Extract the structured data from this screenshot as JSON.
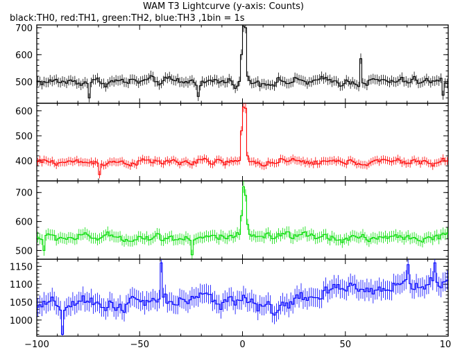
{
  "title": "WAM T3 Lightcurve (y-axis: Counts)",
  "subtitle": "black:TH0, red:TH1, green:TH2, blue:TH3 ,1bin = 1s",
  "chart_data": [
    {
      "type": "line",
      "series_name": "TH0",
      "color": "#000000",
      "xlim": [
        -100,
        100
      ],
      "ylim": [
        420,
        710
      ],
      "yticks": [
        500,
        600,
        700
      ],
      "ytick_labels": [
        "500",
        "600",
        "700"
      ],
      "baseline": 500,
      "noise": 22,
      "features": [
        {
          "x": -0.5,
          "value": 600
        },
        {
          "x": 0.5,
          "value": 705
        },
        {
          "x": 1.5,
          "value": 700
        },
        {
          "x": 2.5,
          "value": 520
        },
        {
          "x": -22,
          "value": 445
        },
        {
          "x": -75,
          "value": 440
        },
        {
          "x": 57,
          "value": 585
        },
        {
          "x": 97,
          "value": 450
        }
      ]
    },
    {
      "type": "line",
      "series_name": "TH1",
      "color": "#ff0000",
      "xlim": [
        -100,
        100
      ],
      "ylim": [
        320,
        630
      ],
      "yticks": [
        400,
        500,
        600
      ],
      "ytick_labels": [
        "400",
        "500",
        "600"
      ],
      "baseline": 395,
      "noise": 18,
      "features": [
        {
          "x": -0.5,
          "value": 520
        },
        {
          "x": 0.5,
          "value": 615
        },
        {
          "x": 1.5,
          "value": 610
        },
        {
          "x": 2.5,
          "value": 420
        },
        {
          "x": -70,
          "value": 345
        },
        {
          "x": 97,
          "value": 410
        }
      ]
    },
    {
      "type": "line",
      "series_name": "TH2",
      "color": "#00dd00",
      "xlim": [
        -100,
        100
      ],
      "ylim": [
        470,
        740
      ],
      "yticks": [
        500,
        600,
        700
      ],
      "ytick_labels": [
        "500",
        "600",
        "700"
      ],
      "baseline": 545,
      "noise": 20,
      "features": [
        {
          "x": -0.5,
          "value": 620
        },
        {
          "x": 0.5,
          "value": 720
        },
        {
          "x": 1.5,
          "value": 690
        },
        {
          "x": 2.5,
          "value": 590
        },
        {
          "x": -97,
          "value": 500
        },
        {
          "x": -25,
          "value": 485
        }
      ]
    },
    {
      "type": "line",
      "series_name": "TH3",
      "color": "#0000ff",
      "xlim": [
        -100,
        100
      ],
      "ylim": [
        955,
        1170
      ],
      "yticks": [
        1000,
        1050,
        1100,
        1150
      ],
      "ytick_labels": [
        "1000",
        "1050",
        "1100",
        "1150"
      ],
      "baseline": 1050,
      "noise": 28,
      "trend": [
        {
          "x": -100,
          "value": 1035
        },
        {
          "x": -40,
          "value": 1050
        },
        {
          "x": 0,
          "value": 1062
        },
        {
          "x": 10,
          "value": 1030
        },
        {
          "x": 50,
          "value": 1085
        },
        {
          "x": 100,
          "value": 1105
        }
      ],
      "features": [
        {
          "x": -88,
          "value": 960
        },
        {
          "x": -40,
          "value": 1160
        },
        {
          "x": 80,
          "value": 1155
        },
        {
          "x": 93,
          "value": 1160
        }
      ]
    }
  ],
  "xaxis": {
    "xlim": [
      -100,
      100
    ],
    "xticks": [
      -100,
      -50,
      0,
      50,
      100
    ],
    "xtick_labels": [
      "−100",
      "−50",
      "0",
      "50",
      "100"
    ]
  }
}
